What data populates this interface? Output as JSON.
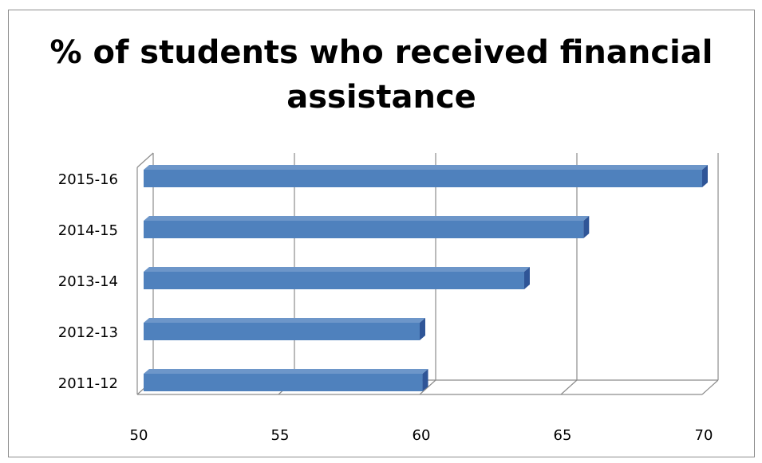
{
  "chart_data": {
    "type": "bar",
    "orientation": "horizontal",
    "title": "% of students who received financial assistance",
    "title_lines": [
      "% of students who received financial",
      "assistance"
    ],
    "categories": [
      "2011-12",
      "2012-13",
      "2013-14",
      "2014-15",
      "2015-16"
    ],
    "values": [
      60.1,
      60.0,
      63.7,
      65.8,
      70.0
    ],
    "xlim": [
      50,
      70
    ],
    "xticks": [
      "50",
      "55",
      "60",
      "65",
      "70"
    ],
    "xlabel": "",
    "ylabel": "",
    "grid": true,
    "legend": "none",
    "bar_color": "#4f81bd",
    "bar_side_color": "#2f5597",
    "bar_top_color": "#6d96c9",
    "grid_color": "#8c8c8c"
  }
}
